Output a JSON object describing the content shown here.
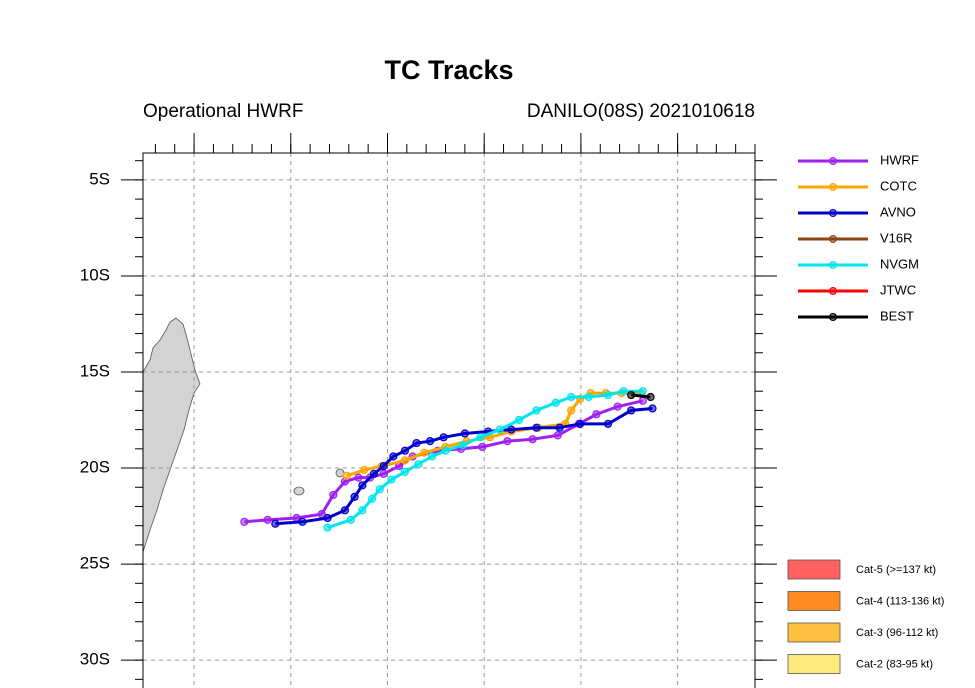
{
  "chart_data": {
    "type": "line",
    "title": "TC Tracks",
    "subtitle_left": "Operational HWRF",
    "subtitle_right": "DANILO(08S) 2021010618",
    "xlim": [
      47.36,
      79.0
    ],
    "ylim": [
      -31.45,
      -3.6
    ],
    "xticks": [
      50,
      55,
      60,
      65,
      70,
      75
    ],
    "yticks": [
      {
        "value": -5,
        "label": "5S"
      },
      {
        "value": -10,
        "label": "10S"
      },
      {
        "value": -15,
        "label": "15S"
      },
      {
        "value": -20,
        "label": "20S"
      },
      {
        "value": -25,
        "label": "25S"
      },
      {
        "value": -30,
        "label": "30S"
      }
    ],
    "grid": true,
    "legend_position": "right",
    "series": [
      {
        "name": "HWRF",
        "color": "#a020f0",
        "x": [
          73.2,
          71.9,
          70.8,
          69.9,
          68.8,
          67.5,
          66.2,
          64.9,
          63.8,
          62.6,
          61.3,
          60.6,
          59.8,
          59.1,
          58.5,
          57.8,
          57.2,
          56.6,
          55.3,
          53.8,
          52.6
        ],
        "values": [
          -16.5,
          -16.8,
          -17.2,
          -17.7,
          -18.3,
          -18.5,
          -18.6,
          -18.9,
          -19.0,
          -19.1,
          -19.4,
          -19.9,
          -20.3,
          -20.5,
          -20.5,
          -20.7,
          -21.4,
          -22.4,
          -22.6,
          -22.7,
          -22.8
        ]
      },
      {
        "name": "COTC",
        "color": "#ffa500",
        "x": [
          73.1,
          72.1,
          71.3,
          70.5,
          69.96,
          69.5,
          69.2,
          67.8,
          66.4,
          65.3,
          64.1,
          63.0,
          61.9,
          60.9,
          59.7,
          58.8,
          57.9
        ],
        "values": [
          -16.1,
          -16.1,
          -16.1,
          -16.1,
          -16.4,
          -17.0,
          -17.7,
          -17.9,
          -18.1,
          -18.4,
          -18.6,
          -18.9,
          -19.2,
          -19.6,
          -19.9,
          -20.1,
          -20.4
        ]
      },
      {
        "name": "AVNO",
        "color": "#0000cd",
        "x": [
          73.7,
          72.6,
          71.4,
          69.96,
          68.9,
          67.7,
          66.4,
          65.2,
          64.0,
          62.9,
          62.2,
          61.5,
          60.9,
          60.3,
          59.8,
          59.3,
          58.7,
          58.3,
          57.8,
          56.9,
          55.6,
          54.2
        ],
        "values": [
          -16.9,
          -17.0,
          -17.7,
          -17.7,
          -17.9,
          -17.9,
          -18.0,
          -18.1,
          -18.2,
          -18.4,
          -18.6,
          -18.7,
          -19.1,
          -19.4,
          -19.9,
          -20.3,
          -20.9,
          -21.5,
          -22.2,
          -22.6,
          -22.8,
          -22.9
        ]
      },
      {
        "name": "V16R",
        "color": "#8b4513",
        "x": [],
        "values": []
      },
      {
        "name": "NVGM",
        "color": "#00e5ee",
        "x": [
          73.2,
          72.2,
          71.4,
          70.4,
          69.5,
          68.7,
          67.7,
          66.8,
          65.8,
          64.8,
          63.9,
          63.0,
          62.3,
          61.6,
          60.9,
          60.2,
          59.6,
          59.2,
          58.7,
          58.1,
          56.9
        ],
        "values": [
          -16.0,
          -16.0,
          -16.2,
          -16.3,
          -16.3,
          -16.6,
          -17.0,
          -17.5,
          -18.0,
          -18.4,
          -18.8,
          -19.1,
          -19.4,
          -19.8,
          -20.2,
          -20.6,
          -21.1,
          -21.6,
          -22.2,
          -22.7,
          -23.1
        ]
      },
      {
        "name": "JTWC",
        "color": "#ff0000",
        "x": [],
        "values": []
      },
      {
        "name": "BEST",
        "color": "#000000",
        "x": [
          72.6,
          73.6
        ],
        "values": [
          -16.2,
          -16.3
        ]
      }
    ],
    "intensity_legend": [
      {
        "label": "Cat-5 (>=137 kt)",
        "color": "#ff6060"
      },
      {
        "label": "Cat-4 (113-136 kt)",
        "color": "#ff8c20"
      },
      {
        "label": "Cat-3 (96-112 kt)",
        "color": "#ffc040"
      },
      {
        "label": "Cat-2 (83-95 kt)",
        "color": "#ffe87c"
      }
    ]
  }
}
